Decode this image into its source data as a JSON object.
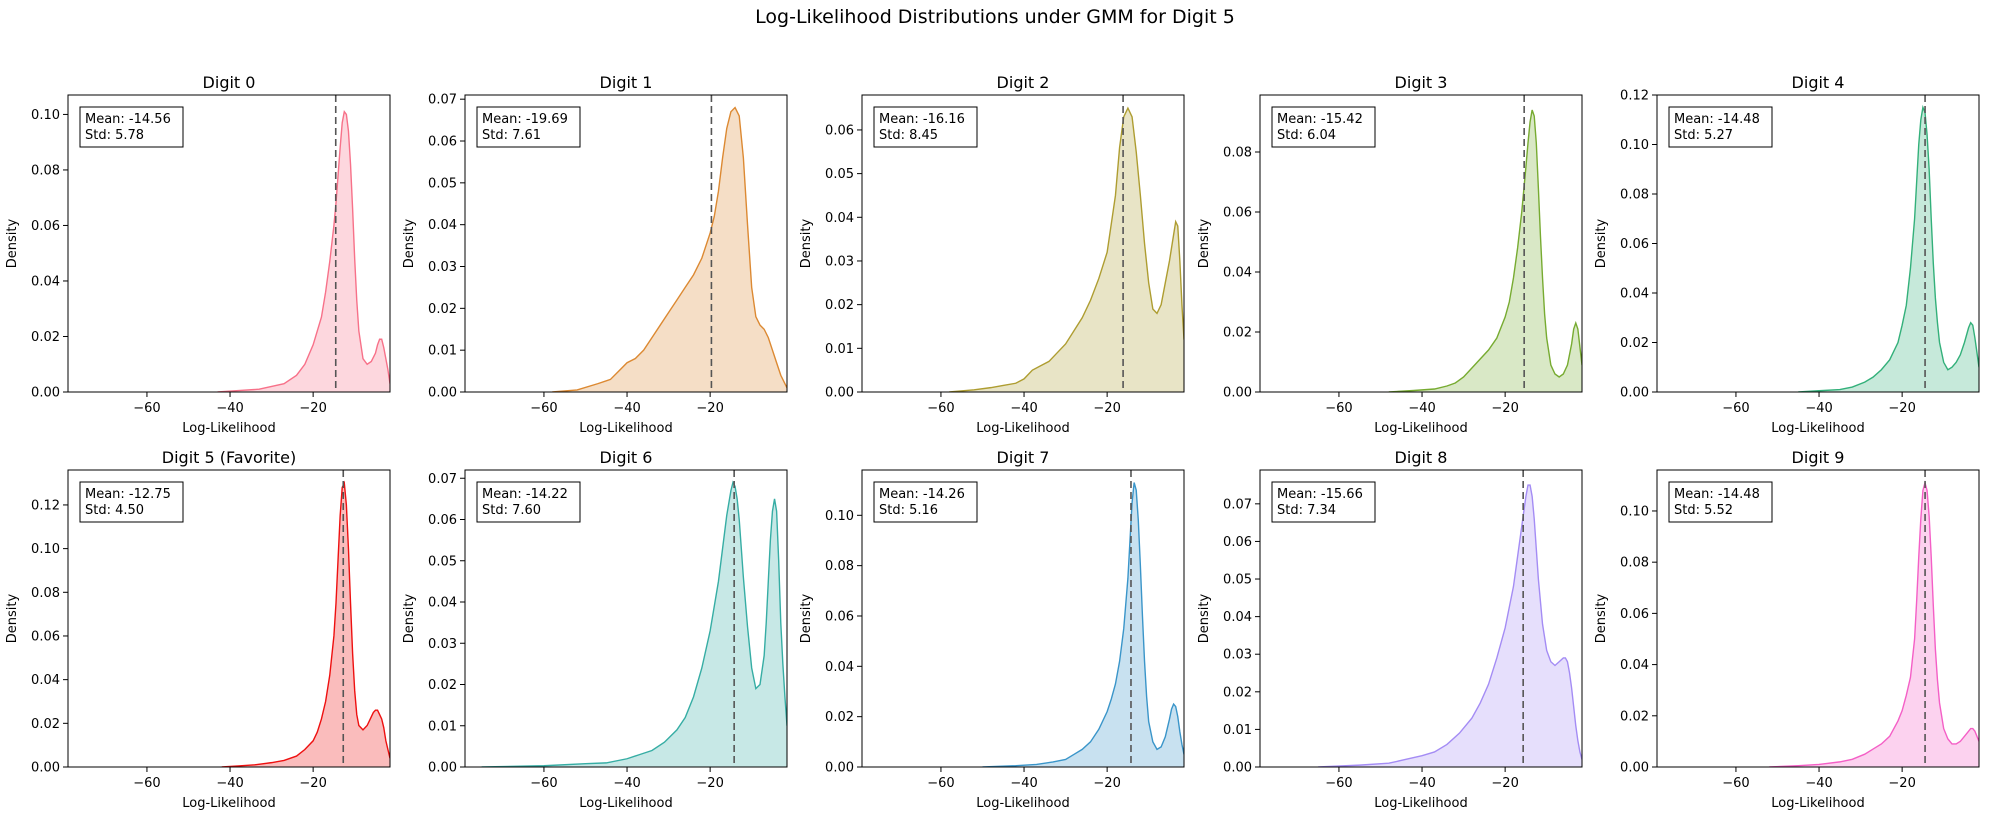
{
  "suptitle": "Log-Likelihood Distributions under GMM for Digit 5",
  "chart_data": [
    {
      "type": "area",
      "title": "Digit 0",
      "xlabel": "Log-Likelihood",
      "ylabel": "Density",
      "color": "#f77189",
      "xlim": [
        -79,
        -1.5
      ],
      "ylim": [
        0,
        0.107
      ],
      "yticks": [
        0,
        0.02,
        0.04,
        0.06,
        0.08,
        0.1
      ],
      "xticks": [
        -60,
        -40,
        -20
      ],
      "mean_line": -14.56,
      "annotation": [
        "Mean: -14.56",
        "Std: 5.78"
      ],
      "x": [
        -43,
        -38,
        -33,
        -30,
        -27,
        -24,
        -22,
        -20,
        -18,
        -17,
        -16,
        -15,
        -14.5,
        -14,
        -13.5,
        -13,
        -12.5,
        -12,
        -11.5,
        -11,
        -10.5,
        -10,
        -9.5,
        -9,
        -8,
        -7,
        -6,
        -5,
        -4.5,
        -4,
        -3.5,
        -3,
        -2,
        -1.5
      ],
      "y": [
        0,
        0.0005,
        0.001,
        0.002,
        0.003,
        0.006,
        0.01,
        0.017,
        0.027,
        0.036,
        0.047,
        0.06,
        0.068,
        0.078,
        0.088,
        0.097,
        0.101,
        0.1,
        0.094,
        0.082,
        0.066,
        0.048,
        0.033,
        0.022,
        0.012,
        0.01,
        0.011,
        0.014,
        0.017,
        0.019,
        0.019,
        0.016,
        0.008,
        0.003
      ]
    },
    {
      "type": "area",
      "title": "Digit 1",
      "xlabel": "Log-Likelihood",
      "ylabel": "Density",
      "color": "#dc8932",
      "xlim": [
        -79,
        -1.5
      ],
      "ylim": [
        0,
        0.071
      ],
      "yticks": [
        0,
        0.01,
        0.02,
        0.03,
        0.04,
        0.05,
        0.06,
        0.07
      ],
      "xticks": [
        -60,
        -40,
        -20
      ],
      "mean_line": -19.69,
      "annotation": [
        "Mean: -19.69",
        "Std: 7.61"
      ],
      "x": [
        -58,
        -52,
        -47,
        -44,
        -42,
        -40,
        -38,
        -36,
        -34,
        -32,
        -30,
        -28,
        -26,
        -24,
        -22,
        -20,
        -19,
        -18,
        -17,
        -16,
        -15,
        -14,
        -13,
        -12,
        -11,
        -10,
        -9,
        -8,
        -7,
        -6,
        -5,
        -4,
        -3,
        -2,
        -1.5
      ],
      "y": [
        0,
        0.0005,
        0.002,
        0.003,
        0.005,
        0.007,
        0.008,
        0.01,
        0.013,
        0.016,
        0.019,
        0.022,
        0.025,
        0.028,
        0.032,
        0.038,
        0.042,
        0.048,
        0.056,
        0.063,
        0.067,
        0.068,
        0.066,
        0.056,
        0.04,
        0.025,
        0.018,
        0.016,
        0.015,
        0.013,
        0.01,
        0.007,
        0.004,
        0.002,
        0.001
      ]
    },
    {
      "type": "area",
      "title": "Digit 2",
      "xlabel": "Log-Likelihood",
      "ylabel": "Density",
      "color": "#ae9d31",
      "xlim": [
        -79,
        -1.5
      ],
      "ylim": [
        0,
        0.068
      ],
      "yticks": [
        0,
        0.01,
        0.02,
        0.03,
        0.04,
        0.05,
        0.06
      ],
      "xticks": [
        -60,
        -40,
        -20
      ],
      "mean_line": -16.16,
      "annotation": [
        "Mean: -16.16",
        "Std: 8.45"
      ],
      "x": [
        -58,
        -52,
        -48,
        -45,
        -42,
        -40,
        -38,
        -36,
        -34,
        -32,
        -30,
        -28,
        -26,
        -24,
        -22,
        -20,
        -18,
        -17,
        -16,
        -15,
        -14,
        -13,
        -12,
        -11,
        -10,
        -9,
        -8,
        -7,
        -6,
        -5,
        -4,
        -3.5,
        -3,
        -2.5,
        -2,
        -1.5
      ],
      "y": [
        0,
        0.0005,
        0.001,
        0.0015,
        0.002,
        0.003,
        0.005,
        0.006,
        0.007,
        0.009,
        0.011,
        0.014,
        0.017,
        0.021,
        0.026,
        0.032,
        0.045,
        0.056,
        0.063,
        0.065,
        0.063,
        0.055,
        0.045,
        0.034,
        0.025,
        0.019,
        0.018,
        0.02,
        0.025,
        0.03,
        0.036,
        0.039,
        0.038,
        0.03,
        0.02,
        0.012
      ]
    },
    {
      "type": "area",
      "title": "Digit 3",
      "xlabel": "Log-Likelihood",
      "ylabel": "Density",
      "color": "#77ab31",
      "xlim": [
        -79,
        -1.5
      ],
      "ylim": [
        0,
        0.099
      ],
      "yticks": [
        0,
        0.02,
        0.04,
        0.06,
        0.08
      ],
      "xticks": [
        -60,
        -40,
        -20
      ],
      "mean_line": -15.42,
      "annotation": [
        "Mean: -15.42",
        "Std: 6.04"
      ],
      "x": [
        -48,
        -42,
        -37,
        -34,
        -32,
        -30,
        -28,
        -26,
        -24,
        -22,
        -20,
        -19,
        -18,
        -17,
        -16,
        -15,
        -14.5,
        -14,
        -13.5,
        -13,
        -12.5,
        -12,
        -11.5,
        -11,
        -10.5,
        -10,
        -9,
        -8,
        -7,
        -6,
        -5,
        -4,
        -3.5,
        -3,
        -2.5,
        -2,
        -1.5
      ],
      "y": [
        0,
        0.0005,
        0.001,
        0.002,
        0.003,
        0.005,
        0.008,
        0.011,
        0.014,
        0.018,
        0.025,
        0.03,
        0.038,
        0.048,
        0.06,
        0.075,
        0.083,
        0.09,
        0.094,
        0.092,
        0.083,
        0.068,
        0.052,
        0.038,
        0.026,
        0.018,
        0.009,
        0.006,
        0.005,
        0.006,
        0.009,
        0.016,
        0.021,
        0.023,
        0.021,
        0.015,
        0.009
      ]
    },
    {
      "type": "area",
      "title": "Digit 4",
      "xlabel": "Log-Likelihood",
      "ylabel": "Density",
      "color": "#33b07a",
      "xlim": [
        -79,
        -1.5
      ],
      "ylim": [
        0,
        0.12
      ],
      "yticks": [
        0,
        0.02,
        0.04,
        0.06,
        0.08,
        0.1,
        0.12
      ],
      "xticks": [
        -60,
        -40,
        -20
      ],
      "mean_line": -14.48,
      "annotation": [
        "Mean: -14.48",
        "Std: 5.27"
      ],
      "x": [
        -45,
        -40,
        -35,
        -32,
        -29,
        -27,
        -25,
        -23,
        -21,
        -20,
        -19,
        -18,
        -17,
        -16.5,
        -16,
        -15.5,
        -15,
        -14.5,
        -14,
        -13.5,
        -13,
        -12.5,
        -12,
        -11.5,
        -11,
        -10,
        -9,
        -8,
        -7,
        -6,
        -5,
        -4,
        -3.5,
        -3,
        -2.5,
        -2,
        -1.5
      ],
      "y": [
        0,
        0.0005,
        0.001,
        0.002,
        0.004,
        0.006,
        0.009,
        0.013,
        0.02,
        0.027,
        0.035,
        0.05,
        0.07,
        0.085,
        0.1,
        0.11,
        0.115,
        0.113,
        0.104,
        0.09,
        0.07,
        0.052,
        0.038,
        0.028,
        0.02,
        0.012,
        0.009,
        0.01,
        0.012,
        0.015,
        0.02,
        0.026,
        0.028,
        0.027,
        0.022,
        0.016,
        0.01
      ]
    },
    {
      "type": "area",
      "title": "Digit 5 (Favorite)",
      "xlabel": "Log-Likelihood",
      "ylabel": "Density",
      "color": "#ee1010",
      "xlim": [
        -79,
        -1.5
      ],
      "ylim": [
        0,
        0.136
      ],
      "yticks": [
        0,
        0.02,
        0.04,
        0.06,
        0.08,
        0.1,
        0.12
      ],
      "xticks": [
        -60,
        -40,
        -20
      ],
      "mean_line": -12.75,
      "annotation": [
        "Mean: -12.75",
        "Std: 4.50"
      ],
      "x": [
        -42,
        -38,
        -34,
        -30,
        -27,
        -24,
        -22,
        -20,
        -19,
        -18,
        -17,
        -16,
        -15,
        -14.5,
        -14,
        -13.5,
        -13,
        -12.5,
        -12,
        -11.5,
        -11,
        -10.5,
        -10,
        -9.5,
        -9,
        -8,
        -7,
        -6,
        -5.5,
        -5,
        -4.5,
        -4,
        -3.5,
        -3,
        -2.5,
        -2,
        -1.5
      ],
      "y": [
        0,
        0.0005,
        0.001,
        0.002,
        0.003,
        0.005,
        0.008,
        0.012,
        0.016,
        0.022,
        0.03,
        0.042,
        0.06,
        0.075,
        0.095,
        0.115,
        0.128,
        0.13,
        0.12,
        0.1,
        0.075,
        0.052,
        0.035,
        0.024,
        0.019,
        0.017,
        0.019,
        0.023,
        0.025,
        0.026,
        0.026,
        0.024,
        0.022,
        0.018,
        0.012,
        0.008,
        0.004
      ]
    },
    {
      "type": "area",
      "title": "Digit 6",
      "xlabel": "Log-Likelihood",
      "ylabel": "Density",
      "color": "#36ada4",
      "xlim": [
        -79,
        -1.5
      ],
      "ylim": [
        0,
        0.072
      ],
      "yticks": [
        0,
        0.01,
        0.02,
        0.03,
        0.04,
        0.05,
        0.06,
        0.07
      ],
      "xticks": [
        -60,
        -40,
        -20
      ],
      "mean_line": -14.22,
      "annotation": [
        "Mean: -14.22",
        "Std: 7.60"
      ],
      "x": [
        -75,
        -60,
        -50,
        -45,
        -40,
        -37,
        -34,
        -31,
        -28,
        -26,
        -24,
        -22,
        -20,
        -18,
        -17,
        -16,
        -15,
        -14.5,
        -14,
        -13.5,
        -13,
        -12.5,
        -12,
        -11,
        -10,
        -9,
        -8,
        -7,
        -6.5,
        -6,
        -5.5,
        -5,
        -4.5,
        -4,
        -3.5,
        -3,
        -2.5,
        -2,
        -1.5
      ],
      "y": [
        0,
        0.0003,
        0.0008,
        0.001,
        0.002,
        0.003,
        0.004,
        0.006,
        0.009,
        0.012,
        0.017,
        0.024,
        0.033,
        0.045,
        0.053,
        0.061,
        0.067,
        0.069,
        0.068,
        0.065,
        0.06,
        0.053,
        0.046,
        0.034,
        0.024,
        0.019,
        0.02,
        0.027,
        0.035,
        0.045,
        0.055,
        0.062,
        0.065,
        0.062,
        0.05,
        0.035,
        0.025,
        0.017,
        0.01
      ]
    },
    {
      "type": "area",
      "title": "Digit 7",
      "xlabel": "Log-Likelihood",
      "ylabel": "Density",
      "color": "#3a95c9",
      "xlim": [
        -79,
        -1.5
      ],
      "ylim": [
        0,
        0.118
      ],
      "yticks": [
        0,
        0.02,
        0.04,
        0.06,
        0.08,
        0.1
      ],
      "xticks": [
        -60,
        -40,
        -20
      ],
      "mean_line": -14.26,
      "annotation": [
        "Mean: -14.26",
        "Std: 5.16"
      ],
      "x": [
        -50,
        -42,
        -37,
        -33,
        -30,
        -28,
        -26,
        -24,
        -22,
        -20,
        -19,
        -18,
        -17,
        -16,
        -15,
        -14.5,
        -14,
        -13.5,
        -13,
        -12.5,
        -12,
        -11.5,
        -11,
        -10.5,
        -10,
        -9,
        -8,
        -7,
        -6,
        -5,
        -4.5,
        -4,
        -3.5,
        -3,
        -2.5,
        -2,
        -1.5
      ],
      "y": [
        0,
        0.0005,
        0.001,
        0.002,
        0.003,
        0.005,
        0.007,
        0.01,
        0.015,
        0.022,
        0.027,
        0.033,
        0.042,
        0.055,
        0.075,
        0.09,
        0.105,
        0.113,
        0.11,
        0.098,
        0.08,
        0.06,
        0.042,
        0.028,
        0.018,
        0.01,
        0.007,
        0.008,
        0.012,
        0.019,
        0.023,
        0.025,
        0.024,
        0.02,
        0.014,
        0.009,
        0.005
      ]
    },
    {
      "type": "area",
      "title": "Digit 8",
      "xlabel": "Log-Likelihood",
      "ylabel": "Density",
      "color": "#a48cf4",
      "xlim": [
        -79,
        -1.5
      ],
      "ylim": [
        0,
        0.079
      ],
      "yticks": [
        0,
        0.01,
        0.02,
        0.03,
        0.04,
        0.05,
        0.06,
        0.07
      ],
      "xticks": [
        -60,
        -40,
        -20
      ],
      "mean_line": -15.66,
      "annotation": [
        "Mean: -15.66",
        "Std: 7.34"
      ],
      "x": [
        -65,
        -55,
        -48,
        -44,
        -40,
        -37,
        -34,
        -31,
        -28,
        -26,
        -24,
        -22,
        -20,
        -18,
        -17,
        -16,
        -15,
        -14.5,
        -14,
        -13.5,
        -13,
        -12.5,
        -12,
        -11,
        -10,
        -9,
        -8,
        -7,
        -6,
        -5.5,
        -5,
        -4.5,
        -4,
        -3.5,
        -3,
        -2.5,
        -2,
        -1.5
      ],
      "y": [
        0,
        0.0005,
        0.001,
        0.002,
        0.003,
        0.004,
        0.006,
        0.009,
        0.013,
        0.017,
        0.022,
        0.029,
        0.037,
        0.048,
        0.056,
        0.064,
        0.072,
        0.075,
        0.075,
        0.072,
        0.066,
        0.058,
        0.05,
        0.038,
        0.031,
        0.028,
        0.027,
        0.028,
        0.029,
        0.029,
        0.028,
        0.025,
        0.021,
        0.016,
        0.011,
        0.007,
        0.004,
        0.002
      ]
    },
    {
      "type": "area",
      "title": "Digit 9",
      "xlabel": "Log-Likelihood",
      "ylabel": "Density",
      "color": "#f45fc6",
      "xlim": [
        -79,
        -1.5
      ],
      "ylim": [
        0,
        0.116
      ],
      "yticks": [
        0,
        0.02,
        0.04,
        0.06,
        0.08,
        0.1
      ],
      "xticks": [
        -60,
        -40,
        -20
      ],
      "mean_line": -14.48,
      "annotation": [
        "Mean: -14.48",
        "Std: 5.52"
      ],
      "x": [
        -52,
        -45,
        -40,
        -35,
        -32,
        -29,
        -27,
        -25,
        -23,
        -21,
        -20,
        -19,
        -18,
        -17,
        -16.5,
        -16,
        -15.5,
        -15,
        -14.5,
        -14,
        -13.5,
        -13,
        -12.5,
        -12,
        -11.5,
        -11,
        -10,
        -9,
        -8,
        -7,
        -6,
        -5,
        -4,
        -3.5,
        -3,
        -2.5,
        -2,
        -1.5
      ],
      "y": [
        0,
        0.0005,
        0.001,
        0.002,
        0.003,
        0.005,
        0.007,
        0.009,
        0.012,
        0.018,
        0.022,
        0.028,
        0.035,
        0.05,
        0.065,
        0.082,
        0.097,
        0.108,
        0.111,
        0.108,
        0.098,
        0.082,
        0.063,
        0.046,
        0.034,
        0.025,
        0.015,
        0.011,
        0.009,
        0.009,
        0.01,
        0.012,
        0.014,
        0.015,
        0.015,
        0.014,
        0.012,
        0.01
      ]
    }
  ]
}
